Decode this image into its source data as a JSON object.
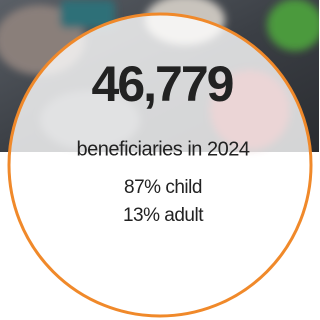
{
  "stat": {
    "value": "46,779",
    "label": "beneficiaries in 2024"
  },
  "breakdown": [
    "87% child",
    "13% adult"
  ]
}
